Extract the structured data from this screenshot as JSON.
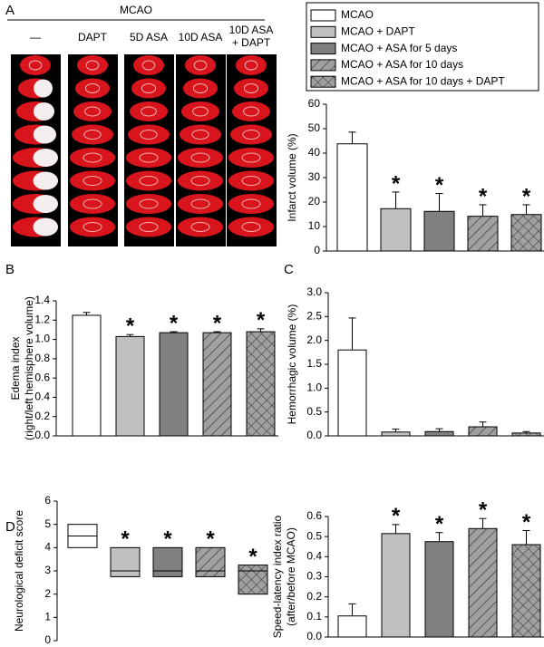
{
  "panel_A_images": {
    "panel": "A",
    "header": "MCAO",
    "columns": [
      [
        "—"
      ],
      [
        "DAPT"
      ],
      [
        "5D ASA"
      ],
      [
        "10D ASA"
      ],
      [
        "10D ASA",
        "+ DAPT"
      ]
    ]
  },
  "groups": [
    {
      "name": "MCAO",
      "color": "#ffffff",
      "pattern": "none"
    },
    {
      "name": "MCAO + DAPT",
      "color": "#c0c0c0",
      "pattern": "none"
    },
    {
      "name": "MCAO + ASA for 5 days",
      "color": "#808080",
      "pattern": "none"
    },
    {
      "name": "MCAO + ASA for 10 days",
      "color": "#a0a0a0",
      "pattern": "hatch"
    },
    {
      "name": "MCAO + ASA for 10 days + DAPT",
      "color": "#a0a0a0",
      "pattern": "crosshatch"
    }
  ],
  "chart_data": [
    {
      "type": "bar",
      "ylabel": [
        "Infarct volume (%)"
      ],
      "values": [
        43.8,
        17.3,
        16.2,
        14.2,
        14.9
      ],
      "errors": [
        4.8,
        6.8,
        7.3,
        4.7,
        4.0
      ],
      "markers": [
        null,
        "*",
        "*",
        "*",
        "*"
      ],
      "ylim": [
        0,
        60
      ],
      "yticks": [
        0,
        10,
        20,
        30,
        40,
        50,
        60
      ]
    },
    {
      "type": "bar",
      "panel": "B",
      "ylabel": [
        "Edema index",
        "(right/left hemisphere volume)"
      ],
      "values": [
        1.25,
        1.03,
        1.07,
        1.07,
        1.08
      ],
      "errors": [
        0.03,
        0.02,
        0.01,
        0.01,
        0.03
      ],
      "markers": [
        null,
        "*",
        "*",
        "*",
        "*"
      ],
      "ylim": [
        0,
        1.4
      ],
      "yticks": [
        {
          "value": 0,
          "label": "0.0"
        },
        0.2,
        0.4,
        0.6,
        0.8,
        {
          "value": 1,
          "label": "1.0"
        },
        1.2,
        1.4
      ]
    },
    {
      "type": "bar",
      "panel": "C",
      "ylabel": [
        "Hemorrhagic volume (%)"
      ],
      "values": [
        1.8,
        0.08,
        0.09,
        0.19,
        0.06
      ],
      "errors": [
        0.67,
        0.06,
        0.06,
        0.1,
        0.03
      ],
      "markers": [
        null,
        null,
        null,
        null,
        null
      ],
      "ylim": [
        0,
        3
      ],
      "yticks": [
        {
          "value": 0,
          "label": "0.0"
        },
        0.5,
        {
          "value": 1,
          "label": "1.0"
        },
        1.5,
        {
          "value": 2,
          "label": "2.0"
        },
        2.5,
        {
          "value": 3,
          "label": "3.0"
        }
      ]
    },
    {
      "type": "box",
      "panel": "D",
      "ylabel": [
        "Neurological deficit score"
      ],
      "boxes": [
        {
          "q1": 4,
          "median": 4.5,
          "q3": 5
        },
        {
          "q1": 2.75,
          "median": 3,
          "q3": 4
        },
        {
          "q1": 2.75,
          "median": 3,
          "q3": 4
        },
        {
          "q1": 2.75,
          "median": 3,
          "q3": 4
        },
        {
          "q1": 2,
          "median": 3,
          "q3": 3.25
        }
      ],
      "markers": [
        null,
        "*",
        "*",
        "*",
        "*"
      ],
      "ylim": [
        0,
        6
      ],
      "yticks": [
        0,
        1,
        2,
        3,
        4,
        5,
        6
      ]
    },
    {
      "type": "bar",
      "ylabel": [
        "Speed-latency index  ratio",
        "(after/before MCAO)"
      ],
      "values": [
        0.105,
        0.515,
        0.475,
        0.54,
        0.46
      ],
      "errors": [
        0.06,
        0.045,
        0.045,
        0.05,
        0.07
      ],
      "markers": [
        null,
        "*",
        "*",
        "*",
        "*"
      ],
      "ylim": [
        0,
        0.6
      ],
      "yticks": [
        {
          "value": 0,
          "label": "0.0"
        },
        0.1,
        0.2,
        0.3,
        0.4,
        0.5,
        0.6
      ]
    }
  ]
}
